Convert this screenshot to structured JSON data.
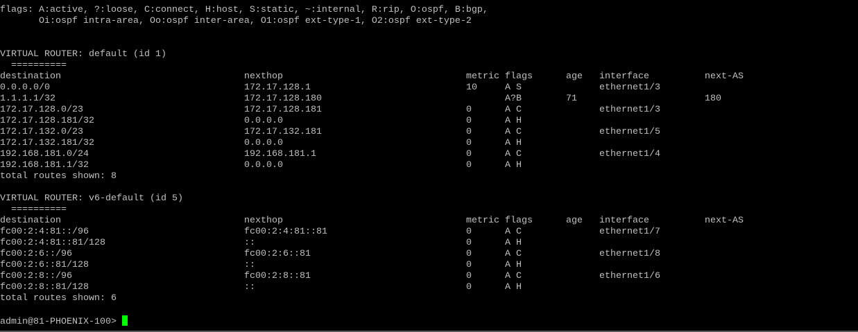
{
  "terminal": {
    "flags_line1": "flags: A:active, ?:loose, C:connect, H:host, S:static, ~:internal, R:rip, O:ospf, B:bgp,",
    "flags_line2": "       Oi:ospf intra-area, Oo:ospf inter-area, O1:ospf ext-type-1, O2:ospf ext-type-2",
    "columns": [
      "destination",
      "nexthop",
      "metric",
      "flags",
      "age",
      "interface",
      "next-AS"
    ],
    "routers": [
      {
        "title": "VIRTUAL ROUTER: default (id 1)",
        "underline": "  ==========",
        "routes": [
          [
            "0.0.0.0/0",
            "172.17.128.1",
            "10",
            "A S",
            "",
            "ethernet1/3",
            ""
          ],
          [
            "1.1.1.1/32",
            "172.17.128.180",
            "",
            "A?B",
            "71",
            "",
            "180"
          ],
          [
            "172.17.128.0/23",
            "172.17.128.181",
            "0",
            "A C",
            "",
            "ethernet1/3",
            ""
          ],
          [
            "172.17.128.181/32",
            "0.0.0.0",
            "0",
            "A H",
            "",
            "",
            ""
          ],
          [
            "172.17.132.0/23",
            "172.17.132.181",
            "0",
            "A C",
            "",
            "ethernet1/5",
            ""
          ],
          [
            "172.17.132.181/32",
            "0.0.0.0",
            "0",
            "A H",
            "",
            "",
            ""
          ],
          [
            "192.168.181.0/24",
            "192.168.181.1",
            "0",
            "A C",
            "",
            "ethernet1/4",
            ""
          ],
          [
            "192.168.181.1/32",
            "0.0.0.0",
            "0",
            "A H",
            "",
            "",
            ""
          ]
        ],
        "total": "total routes shown: 8"
      },
      {
        "title": "VIRTUAL ROUTER: v6-default (id 5)",
        "underline": "  ==========",
        "routes": [
          [
            "fc00:2:4:81::/96",
            "fc00:2:4:81::81",
            "0",
            "A C",
            "",
            "ethernet1/7",
            ""
          ],
          [
            "fc00:2:4:81::81/128",
            "::",
            "0",
            "A H",
            "",
            "",
            ""
          ],
          [
            "fc00:2:6::/96",
            "fc00:2:6::81",
            "0",
            "A C",
            "",
            "ethernet1/8",
            ""
          ],
          [
            "fc00:2:6::81/128",
            "::",
            "0",
            "A H",
            "",
            "",
            ""
          ],
          [
            "fc00:2:8::/96",
            "fc00:2:8::81",
            "0",
            "A C",
            "",
            "ethernet1/6",
            ""
          ],
          [
            "fc00:2:8::81/128",
            "::",
            "0",
            "A H",
            "",
            "",
            ""
          ]
        ],
        "total": "total routes shown: 6"
      }
    ],
    "prompt": "admin@81-PHOENIX-100>",
    "colors": {
      "text": "#c0c0c0",
      "background": "#000000",
      "cursor": "#00ff00"
    }
  }
}
